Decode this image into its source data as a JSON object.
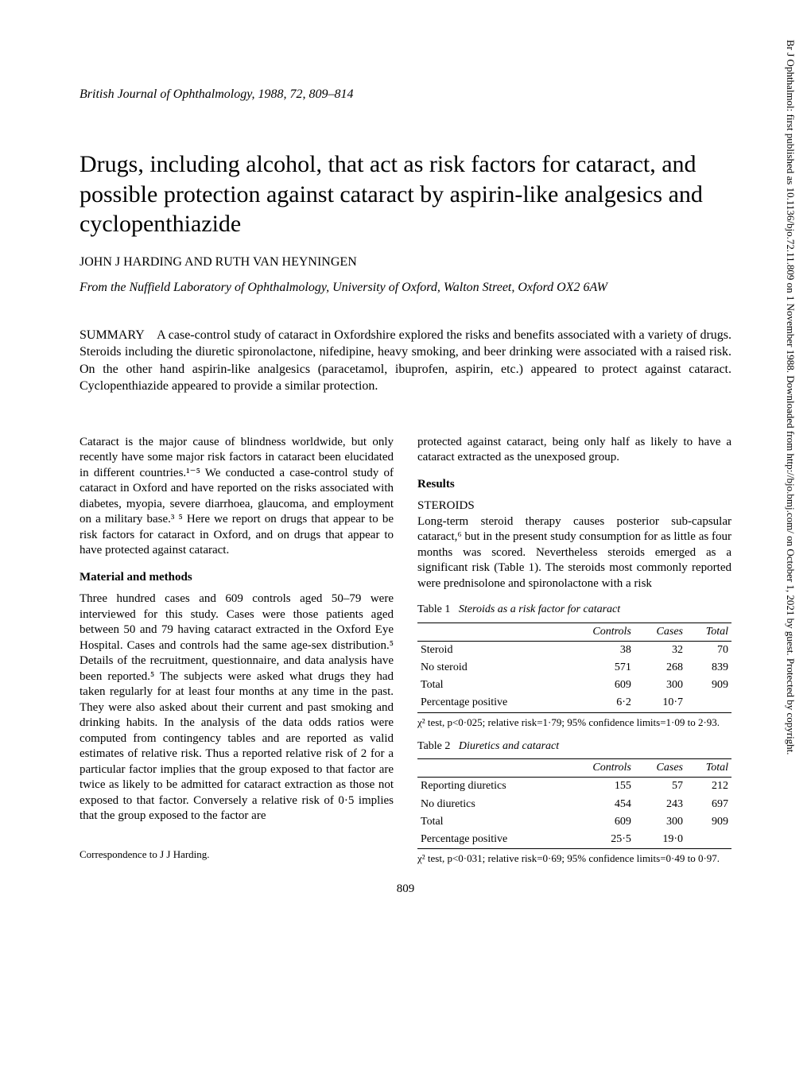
{
  "journal_ref": "British Journal of Ophthalmology, 1988, 72, 809–814",
  "title": "Drugs, including alcohol, that act as risk factors for cataract, and possible protection against cataract by aspirin-like analgesics and cyclopenthiazide",
  "authors": "JOHN J HARDING AND RUTH VAN HEYNINGEN",
  "affiliation": "From the Nuffield Laboratory of Ophthalmology, University of Oxford, Walton Street, Oxford OX2 6AW",
  "summary_label": "SUMMARY",
  "summary_text": "A case-control study of cataract in Oxfordshire explored the risks and benefits associated with a variety of drugs. Steroids including the diuretic spironolactone, nifedipine, heavy smoking, and beer drinking were associated with a raised risk. On the other hand aspirin-like analgesics (paracetamol, ibuprofen, aspirin, etc.) appeared to protect against cataract. Cyclopenthiazide appeared to provide a similar protection.",
  "left_col": {
    "intro": "Cataract is the major cause of blindness worldwide, but only recently have some major risk factors in cataract been elucidated in different countries.¹⁻⁵ We conducted a case-control study of cataract in Oxford and have reported on the risks associated with diabetes, myopia, severe diarrhoea, glaucoma, and employment on a military base.³ ⁵ Here we report on drugs that appear to be risk factors for cataract in Oxford, and on drugs that appear to have protected against cataract.",
    "heading_methods": "Material and methods",
    "methods": "Three hundred cases and 609 controls aged 50–79 were interviewed for this study. Cases were those patients aged between 50 and 79 having cataract extracted in the Oxford Eye Hospital. Cases and controls had the same age-sex distribution.⁵ Details of the recruitment, questionnaire, and data analysis have been reported.⁵ The subjects were asked what drugs they had taken regularly for at least four months at any time in the past. They were also asked about their current and past smoking and drinking habits. In the analysis of the data odds ratios were computed from contingency tables and are reported as valid estimates of relative risk. Thus a reported relative risk of 2 for a particular factor implies that the group exposed to that factor are twice as likely to be admitted for cataract extraction as those not exposed to that factor. Conversely a relative risk of 0·5 implies that the group exposed to the factor are",
    "correspondence": "Correspondence to J J Harding."
  },
  "right_col": {
    "cont": "protected against cataract, being only half as likely to have a cataract extracted as the unexposed group.",
    "heading_results": "Results",
    "subheading_steroids": "STEROIDS",
    "steroids_para": "Long-term steroid therapy causes posterior sub-capsular cataract,⁶ but in the present study consumption for as little as four months was scored. Nevertheless steroids emerged as a significant risk (Table 1). The steroids most commonly reported were prednisolone and spironolactone with a risk"
  },
  "table1": {
    "caption_num": "Table 1",
    "caption_title": "Steroids as a risk factor for cataract",
    "headers": [
      "",
      "Controls",
      "Cases",
      "Total"
    ],
    "rows": [
      [
        "Steroid",
        "38",
        "32",
        "70"
      ],
      [
        "No steroid",
        "571",
        "268",
        "839"
      ],
      [
        "Total",
        "609",
        "300",
        "909"
      ],
      [
        "Percentage positive",
        "6·2",
        "10·7",
        ""
      ]
    ],
    "note": "χ² test, p<0·025; relative risk=1·79; 95% confidence limits=1·09 to 2·93."
  },
  "table2": {
    "caption_num": "Table 2",
    "caption_title": "Diuretics and cataract",
    "headers": [
      "",
      "Controls",
      "Cases",
      "Total"
    ],
    "rows": [
      [
        "Reporting diuretics",
        "155",
        "57",
        "212"
      ],
      [
        "No diuretics",
        "454",
        "243",
        "697"
      ],
      [
        "Total",
        "609",
        "300",
        "909"
      ],
      [
        "Percentage positive",
        "25·5",
        "19·0",
        ""
      ]
    ],
    "note": "χ² test, p<0·031; relative risk=0·69; 95% confidence limits=0·49 to 0·97."
  },
  "page_number": "809",
  "side_note": "Br J Ophthalmol: first published as 10.1136/bjo.72.11.809 on 1 November 1988. Downloaded from http://bjo.bmj.com/ on October 1, 2021 by guest. Protected by copyright."
}
